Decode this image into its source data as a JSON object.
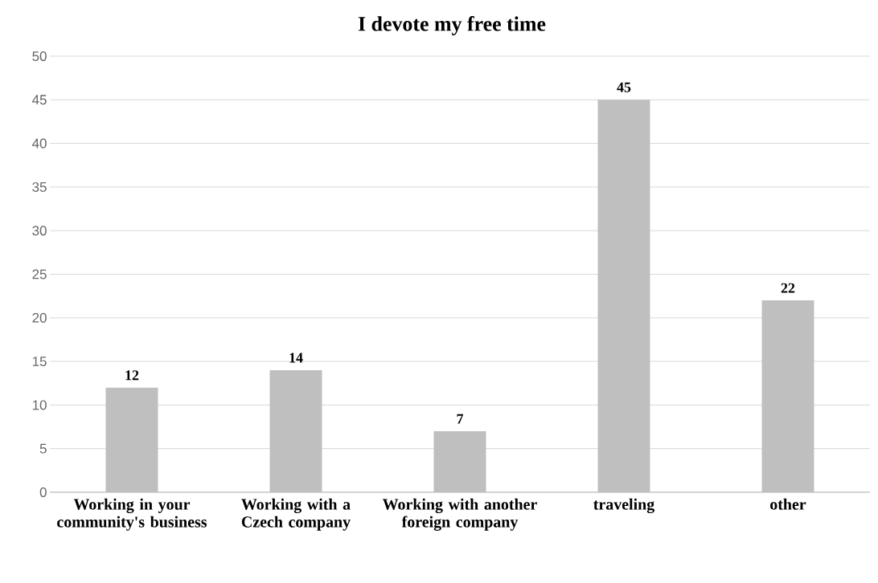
{
  "chart_data": {
    "type": "bar",
    "title": "I devote my free time",
    "categories": [
      "Working in your community's business",
      "Working with a Czech company",
      "Working with another foreign company",
      "traveling",
      "other"
    ],
    "values": [
      12,
      14,
      7,
      45,
      22
    ],
    "color": "#bfbfbf",
    "ylim": [
      0,
      50
    ],
    "yticks": [
      0,
      5,
      10,
      15,
      20,
      25,
      30,
      35,
      40,
      45,
      50
    ],
    "grid": "y",
    "data_labels": true
  }
}
